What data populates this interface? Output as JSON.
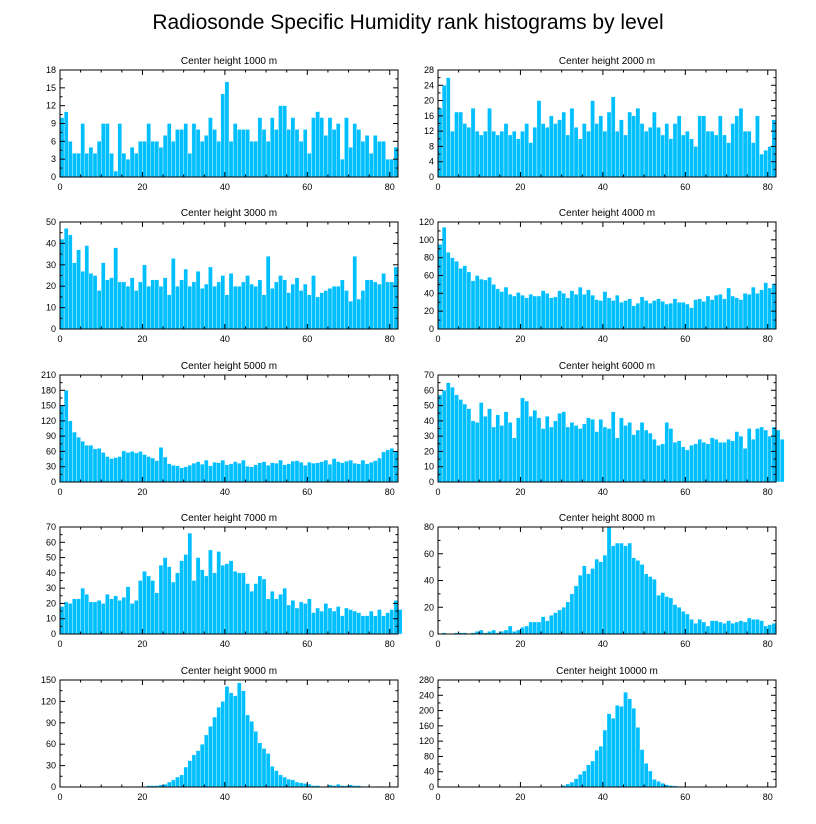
{
  "figure_title": "Radiosonde Specific Humidity rank histograms by level",
  "colors": {
    "bar": "#00bfff",
    "axis": "#000000",
    "background": "#ffffff"
  },
  "chart_data": [
    {
      "type": "bar",
      "title": "Center height 1000 m",
      "xlim": [
        0,
        82
      ],
      "ylim": [
        0,
        18
      ],
      "x_ticks": [
        0,
        20,
        40,
        60,
        80
      ],
      "y_ticks": [
        0,
        3,
        6,
        9,
        12,
        15,
        18
      ],
      "x_tick_labels": [
        "0",
        "20",
        "40",
        "60",
        "80"
      ],
      "y_tick_labels": [
        "0",
        "3",
        "6",
        "9",
        "12",
        "15",
        "18"
      ],
      "values": [
        10,
        11,
        6,
        4,
        4,
        9,
        4,
        5,
        4,
        6,
        9,
        9,
        4,
        1,
        9,
        4,
        3,
        5,
        4,
        6,
        6,
        9,
        6,
        6,
        5,
        7,
        9,
        6,
        8,
        8,
        9,
        4,
        9,
        8,
        6,
        7,
        10,
        8,
        6,
        14,
        16,
        6,
        9,
        8,
        8,
        8,
        6,
        6,
        10,
        8,
        6,
        10,
        8,
        12,
        12,
        8,
        10,
        8,
        6,
        8,
        4,
        10,
        11,
        10,
        7,
        10,
        8,
        9,
        3,
        10,
        5,
        9,
        8,
        6,
        7,
        4,
        7,
        6,
        6,
        3,
        3,
        5
      ]
    },
    {
      "type": "bar",
      "title": "Center height 2000 m",
      "xlim": [
        0,
        82
      ],
      "ylim": [
        0,
        28
      ],
      "x_ticks": [
        0,
        20,
        40,
        60,
        80
      ],
      "y_ticks": [
        0,
        4,
        8,
        12,
        16,
        20,
        24,
        28
      ],
      "x_tick_labels": [
        "0",
        "20",
        "40",
        "60",
        "80"
      ],
      "y_tick_labels": [
        "0",
        "4",
        "8",
        "12",
        "16",
        "20",
        "24",
        "28"
      ],
      "values": [
        18,
        24,
        26,
        12,
        17,
        17,
        14,
        13,
        18,
        12,
        11,
        12,
        18,
        12,
        11,
        12,
        14,
        11,
        12,
        10,
        12,
        14,
        9,
        13,
        20,
        14,
        13,
        16,
        14,
        15,
        17,
        11,
        18,
        13,
        10,
        14,
        12,
        20,
        14,
        16,
        12,
        17,
        21,
        12,
        15,
        11,
        17,
        16,
        18,
        14,
        12,
        13,
        17,
        13,
        11,
        14,
        10,
        14,
        16,
        11,
        12,
        10,
        8,
        16,
        16,
        12,
        12,
        11,
        16,
        11,
        9,
        14,
        16,
        18,
        12,
        12,
        9,
        16,
        6,
        7,
        8,
        15
      ]
    },
    {
      "type": "bar",
      "title": "Center height 3000 m",
      "xlim": [
        0,
        82
      ],
      "ylim": [
        0,
        50
      ],
      "x_ticks": [
        0,
        20,
        40,
        60,
        80
      ],
      "y_ticks": [
        0,
        10,
        20,
        30,
        40,
        50
      ],
      "x_tick_labels": [
        "0",
        "20",
        "40",
        "60",
        "80"
      ],
      "y_tick_labels": [
        "0",
        "10",
        "20",
        "30",
        "40",
        "50"
      ],
      "values": [
        42,
        47,
        44,
        31,
        37,
        27,
        39,
        26,
        25,
        18,
        31,
        23,
        24,
        38,
        22,
        22,
        20,
        24,
        18,
        22,
        30,
        20,
        23,
        23,
        20,
        24,
        16,
        33,
        20,
        23,
        28,
        20,
        22,
        27,
        19,
        21,
        29,
        20,
        22,
        25,
        16,
        26,
        20,
        20,
        22,
        25,
        21,
        20,
        23,
        16,
        34,
        19,
        22,
        25,
        23,
        17,
        21,
        24,
        18,
        21,
        16,
        25,
        15,
        17,
        18,
        19,
        20,
        20,
        23,
        18,
        13,
        34,
        14,
        18,
        23,
        23,
        22,
        21,
        26,
        22,
        22,
        29
      ]
    },
    {
      "type": "bar",
      "title": "Center height 4000 m",
      "xlim": [
        0,
        82
      ],
      "ylim": [
        0,
        120
      ],
      "x_ticks": [
        0,
        20,
        40,
        60,
        80
      ],
      "y_ticks": [
        0,
        20,
        40,
        60,
        80,
        100,
        120
      ],
      "x_tick_labels": [
        "0",
        "20",
        "40",
        "60",
        "80"
      ],
      "y_tick_labels": [
        "0",
        "20",
        "40",
        "60",
        "80",
        "100",
        "120"
      ],
      "values": [
        95,
        114,
        86,
        80,
        76,
        68,
        71,
        64,
        54,
        60,
        56,
        55,
        58,
        50,
        45,
        42,
        47,
        39,
        37,
        41,
        38,
        35,
        39,
        37,
        37,
        43,
        40,
        35,
        36,
        43,
        40,
        35,
        43,
        39,
        47,
        39,
        44,
        38,
        33,
        32,
        42,
        35,
        32,
        38,
        30,
        32,
        34,
        26,
        29,
        36,
        32,
        29,
        32,
        34,
        31,
        28,
        29,
        34,
        30,
        30,
        28,
        24,
        33,
        34,
        31,
        37,
        33,
        38,
        39,
        34,
        46,
        37,
        35,
        33,
        40,
        39,
        47,
        40,
        44,
        52,
        46,
        51
      ]
    },
    {
      "type": "bar",
      "title": "Center height 5000 m",
      "xlim": [
        0,
        82
      ],
      "ylim": [
        0,
        210
      ],
      "x_ticks": [
        0,
        20,
        40,
        60,
        80
      ],
      "y_ticks": [
        0,
        30,
        60,
        90,
        120,
        150,
        180,
        210
      ],
      "x_tick_labels": [
        "0",
        "20",
        "40",
        "60",
        "80"
      ],
      "y_tick_labels": [
        "0",
        "30",
        "60",
        "90",
        "120",
        "150",
        "180",
        "210"
      ],
      "values": [
        150,
        180,
        120,
        98,
        88,
        80,
        72,
        72,
        65,
        66,
        58,
        50,
        46,
        48,
        50,
        61,
        58,
        60,
        57,
        60,
        54,
        50,
        47,
        42,
        68,
        49,
        36,
        33,
        32,
        28,
        30,
        33,
        37,
        40,
        35,
        43,
        32,
        39,
        38,
        43,
        34,
        36,
        40,
        37,
        43,
        31,
        30,
        34,
        38,
        40,
        33,
        38,
        37,
        43,
        34,
        36,
        41,
        42,
        39,
        33,
        39,
        37,
        38,
        40,
        43,
        35,
        46,
        40,
        38,
        41,
        43,
        37,
        36,
        43,
        36,
        39,
        42,
        47,
        59,
        63,
        66,
        60
      ]
    },
    {
      "type": "bar",
      "title": "Center height 6000 m",
      "xlim": [
        0,
        82
      ],
      "ylim": [
        0,
        70
      ],
      "x_ticks": [
        0,
        20,
        40,
        60,
        80
      ],
      "y_ticks": [
        0,
        10,
        20,
        30,
        40,
        50,
        60,
        70
      ],
      "x_tick_labels": [
        "0",
        "20",
        "40",
        "60",
        "80"
      ],
      "y_tick_labels": [
        "0",
        "10",
        "20",
        "30",
        "40",
        "50",
        "60",
        "70"
      ],
      "values": [
        57,
        60,
        65,
        62,
        57,
        54,
        51,
        48,
        40,
        39,
        52,
        43,
        48,
        36,
        44,
        37,
        46,
        39,
        29,
        42,
        55,
        53,
        43,
        47,
        42,
        35,
        43,
        36,
        40,
        45,
        46,
        36,
        39,
        37,
        35,
        38,
        42,
        41,
        33,
        41,
        36,
        35,
        46,
        29,
        42,
        37,
        39,
        31,
        34,
        39,
        34,
        32,
        28,
        24,
        25,
        39,
        35,
        26,
        27,
        23,
        21,
        24,
        25,
        28,
        26,
        25,
        29,
        28,
        26,
        26,
        28,
        27,
        33,
        30,
        22,
        35,
        28,
        35,
        36,
        34,
        30,
        36,
        34,
        28
      ]
    },
    {
      "type": "bar",
      "title": "Center height 7000 m",
      "xlim": [
        0,
        82
      ],
      "ylim": [
        0,
        70
      ],
      "x_ticks": [
        0,
        20,
        40,
        60,
        80
      ],
      "y_ticks": [
        0,
        10,
        20,
        30,
        40,
        50,
        60,
        70
      ],
      "x_tick_labels": [
        "0",
        "20",
        "40",
        "60",
        "80"
      ],
      "y_tick_labels": [
        "0",
        "10",
        "20",
        "30",
        "40",
        "50",
        "60",
        "70"
      ],
      "values": [
        18,
        21,
        20,
        23,
        23,
        30,
        26,
        21,
        21,
        22,
        20,
        26,
        23,
        25,
        22,
        24,
        31,
        20,
        22,
        35,
        41,
        38,
        35,
        27,
        45,
        50,
        44,
        34,
        40,
        48,
        52,
        66,
        35,
        50,
        42,
        38,
        55,
        40,
        54,
        45,
        46,
        48,
        41,
        40,
        40,
        33,
        28,
        33,
        38,
        36,
        23,
        28,
        23,
        26,
        30,
        19,
        22,
        17,
        21,
        20,
        23,
        14,
        17,
        15,
        20,
        17,
        15,
        18,
        12,
        17,
        16,
        15,
        14,
        12,
        12,
        15,
        12,
        16,
        12,
        14,
        16,
        22,
        16
      ]
    },
    {
      "type": "bar",
      "title": "Center height 8000 m",
      "xlim": [
        0,
        82
      ],
      "ylim": [
        0,
        80
      ],
      "x_ticks": [
        0,
        20,
        40,
        60,
        80
      ],
      "y_ticks": [
        0,
        20,
        40,
        60,
        80
      ],
      "x_tick_labels": [
        "0",
        "20",
        "40",
        "60",
        "80"
      ],
      "y_tick_labels": [
        "0",
        "20",
        "40",
        "60",
        "80"
      ],
      "values": [
        0,
        1,
        0,
        0,
        1,
        1,
        1,
        0,
        1,
        2,
        3,
        1,
        2,
        3,
        1,
        2,
        3,
        6,
        2,
        3,
        5,
        6,
        9,
        9,
        9,
        13,
        10,
        14,
        16,
        18,
        20,
        24,
        30,
        36,
        44,
        51,
        45,
        49,
        56,
        54,
        59,
        80,
        66,
        68,
        68,
        66,
        68,
        57,
        55,
        52,
        45,
        43,
        41,
        29,
        31,
        28,
        27,
        22,
        20,
        17,
        15,
        11,
        8,
        11,
        9,
        6,
        10,
        10,
        9,
        8,
        10,
        8,
        9,
        10,
        9,
        12,
        11,
        11,
        10,
        6,
        7,
        8
      ]
    },
    {
      "type": "bar",
      "title": "Center height 9000 m",
      "xlim": [
        0,
        82
      ],
      "ylim": [
        0,
        150
      ],
      "x_ticks": [
        0,
        20,
        40,
        60,
        80
      ],
      "y_ticks": [
        0,
        30,
        60,
        90,
        120,
        150
      ],
      "x_tick_labels": [
        "0",
        "20",
        "40",
        "60",
        "80"
      ],
      "y_tick_labels": [
        "0",
        "30",
        "60",
        "90",
        "120",
        "150"
      ],
      "values": [
        0,
        0,
        0,
        0,
        0,
        0,
        0,
        0,
        0,
        0,
        0,
        0,
        0,
        0,
        0,
        0,
        0,
        0,
        0,
        0,
        0,
        2,
        2,
        2,
        3,
        4,
        7,
        10,
        14,
        17,
        28,
        37,
        45,
        51,
        60,
        73,
        85,
        98,
        112,
        120,
        141,
        132,
        128,
        146,
        135,
        101,
        92,
        78,
        62,
        54,
        47,
        29,
        23,
        17,
        14,
        11,
        10,
        7,
        6,
        5,
        4,
        2,
        2,
        1,
        1,
        3,
        2,
        4,
        2,
        2,
        3,
        2,
        2,
        1,
        1,
        0,
        0,
        1,
        0,
        0,
        0,
        0
      ]
    },
    {
      "type": "bar",
      "title": "Center height 10000 m",
      "xlim": [
        0,
        82
      ],
      "ylim": [
        0,
        280
      ],
      "x_ticks": [
        0,
        20,
        40,
        60,
        80
      ],
      "y_ticks": [
        0,
        40,
        80,
        120,
        160,
        200,
        240,
        280
      ],
      "x_tick_labels": [
        "0",
        "20",
        "40",
        "60",
        "80"
      ],
      "y_tick_labels": [
        "0",
        "40",
        "80",
        "120",
        "160",
        "200",
        "240",
        "280"
      ],
      "values": [
        0,
        0,
        0,
        0,
        0,
        0,
        0,
        0,
        0,
        0,
        0,
        0,
        0,
        0,
        0,
        0,
        0,
        0,
        0,
        0,
        0,
        0,
        0,
        0,
        0,
        0,
        0,
        0,
        0,
        0,
        4,
        8,
        13,
        22,
        33,
        42,
        58,
        68,
        96,
        107,
        149,
        192,
        180,
        214,
        211,
        248,
        231,
        206,
        156,
        98,
        62,
        42,
        20,
        15,
        10,
        6,
        4,
        3,
        2,
        1,
        1,
        0,
        0,
        0,
        0,
        0,
        0,
        0,
        0,
        0,
        0,
        0,
        0,
        0,
        0,
        0,
        0,
        0,
        0,
        0,
        0,
        0
      ]
    }
  ]
}
